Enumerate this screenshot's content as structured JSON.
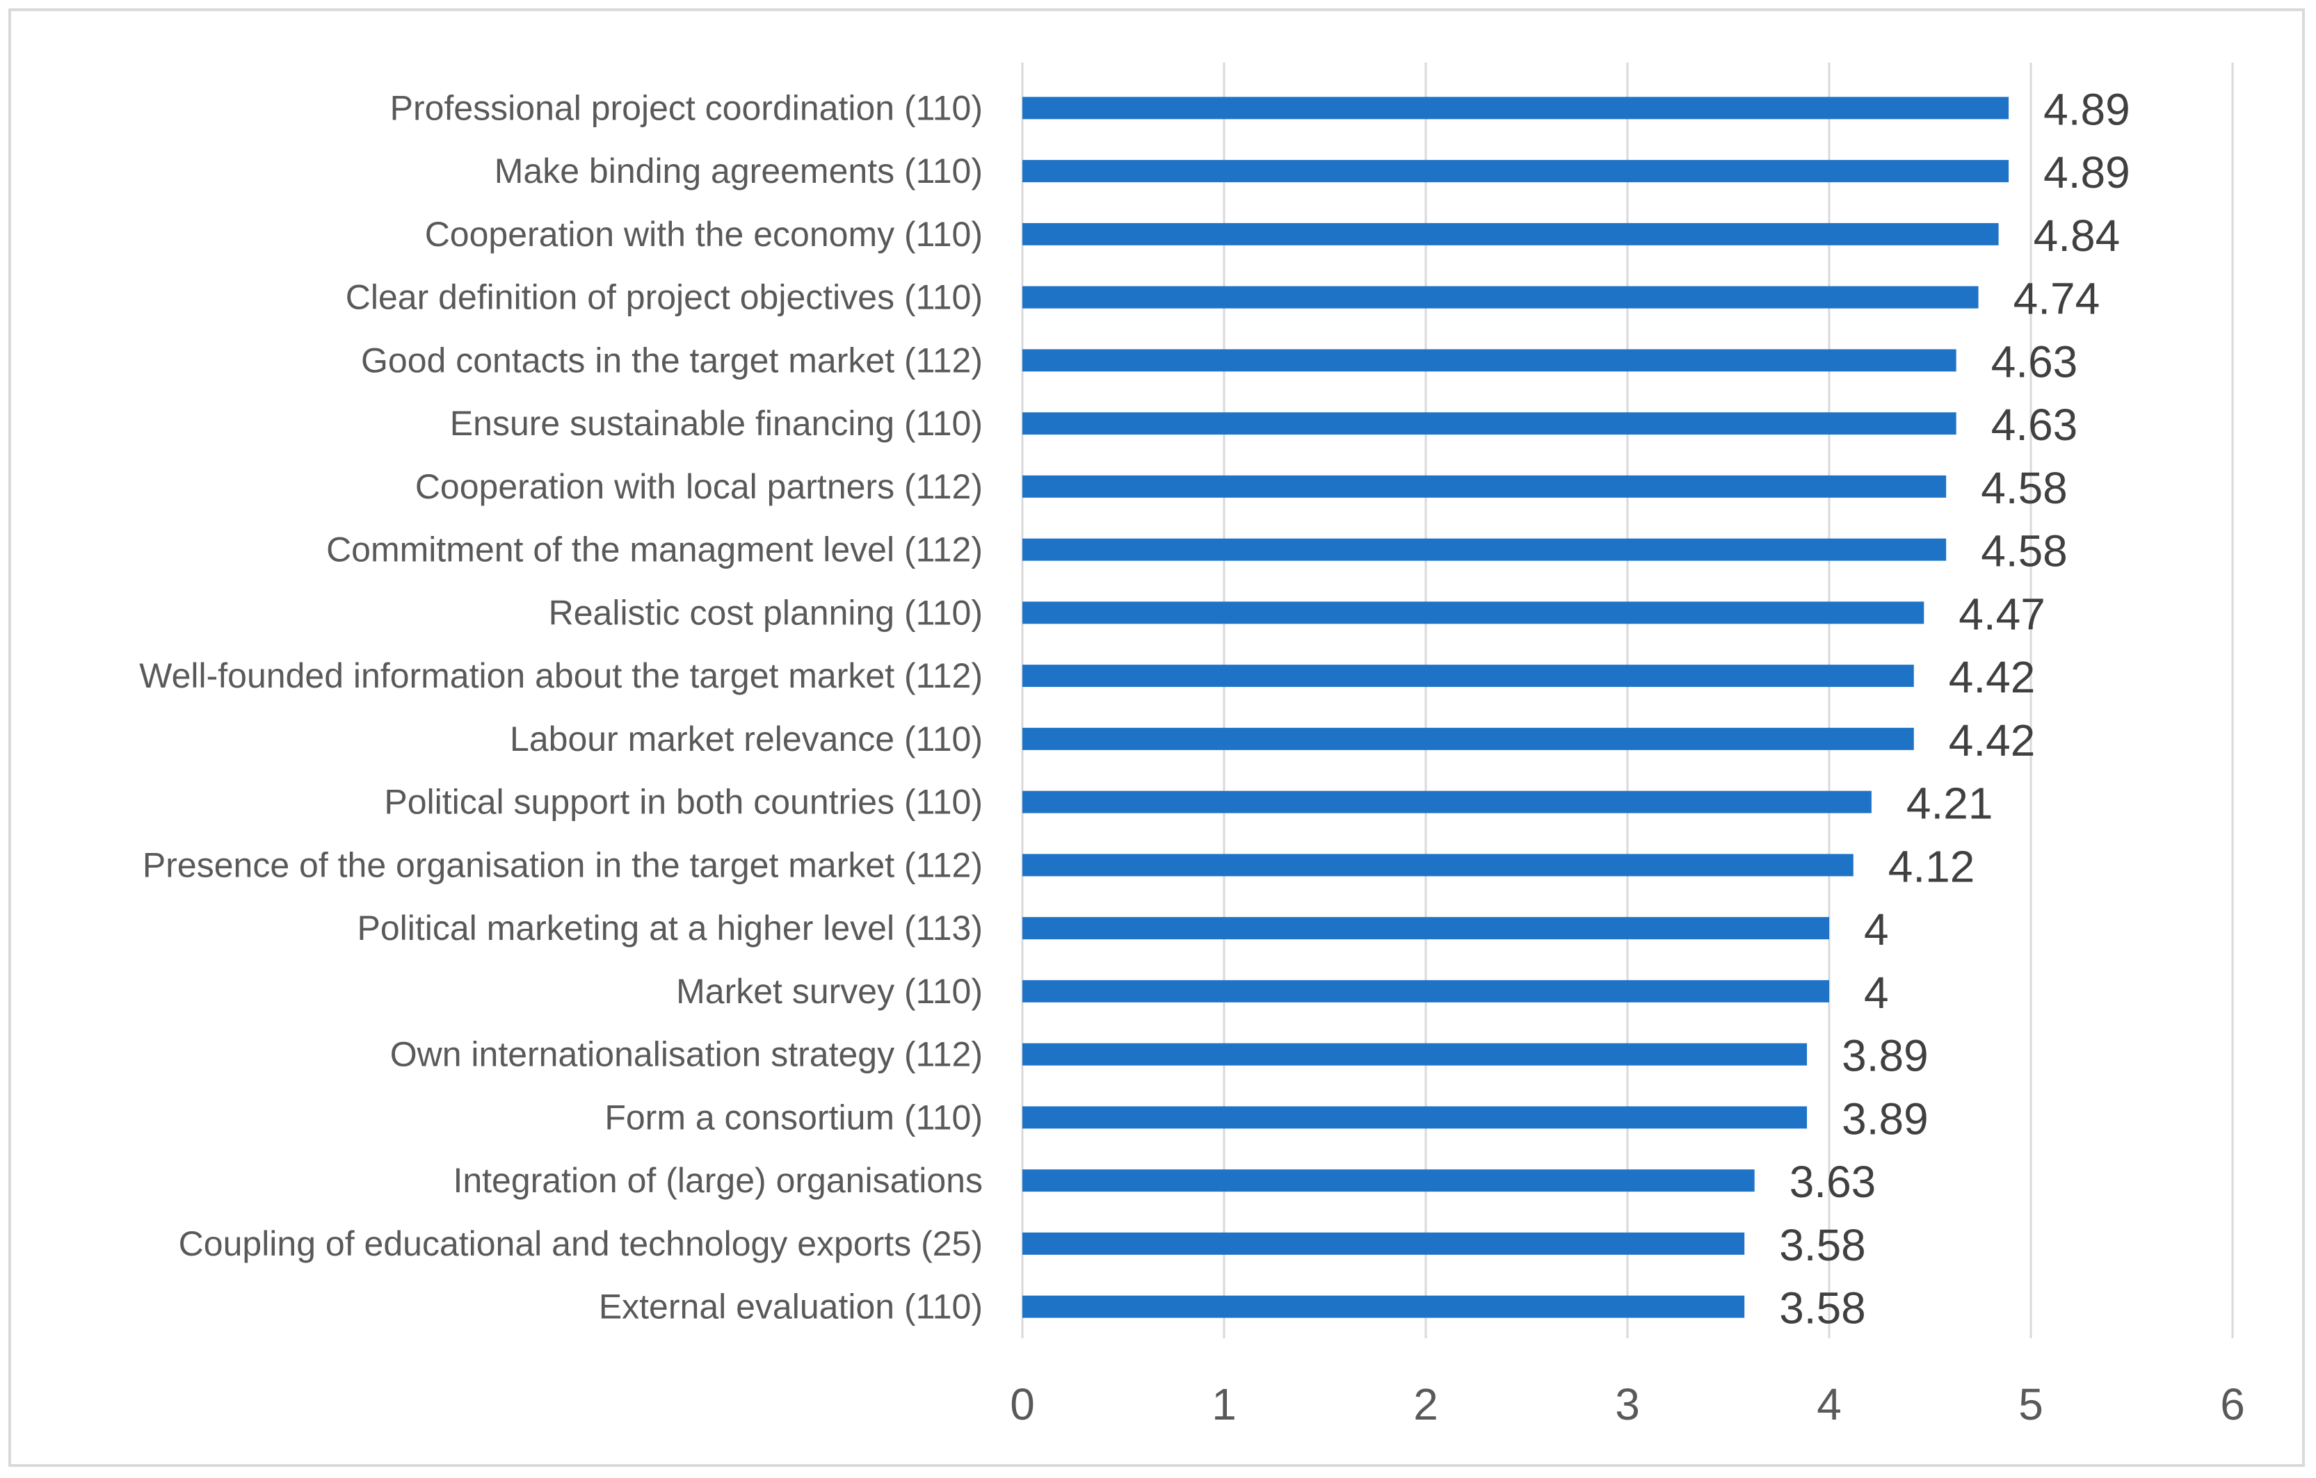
{
  "chart_data": {
    "type": "bar",
    "orientation": "horizontal",
    "title": "",
    "xlabel": "",
    "ylabel": "",
    "xlim": [
      0,
      6
    ],
    "xticks": [
      0,
      1,
      2,
      3,
      4,
      5,
      6
    ],
    "grid": true,
    "legend": "none",
    "bar_color": "#1f73c7",
    "categories": [
      "Professional project coordination (110)",
      "Make binding agreements (110)",
      "Cooperation with the economy (110)",
      "Clear definition of project objectives (110)",
      "Good contacts in the target market (112)",
      "Ensure sustainable financing (110)",
      "Cooperation with local partners (112)",
      "Commitment of the managment level (112)",
      "Realistic cost planning (110)",
      "Well-founded information about the target market (112)",
      "Labour market relevance (110)",
      "Political support in both countries (110)",
      "Presence of the organisation in the target market (112)",
      "Political marketing at a higher level (113)",
      "Market survey (110)",
      "Own internationalisation strategy (112)",
      "Form a consortium (110)",
      "Integration of (large) organisations",
      "Coupling of educational and technology exports (25)",
      "External evaluation (110)"
    ],
    "values": [
      4.89,
      4.89,
      4.84,
      4.74,
      4.63,
      4.63,
      4.58,
      4.58,
      4.47,
      4.42,
      4.42,
      4.21,
      4.12,
      4,
      4,
      3.89,
      3.89,
      3.63,
      3.58,
      3.58
    ]
  }
}
